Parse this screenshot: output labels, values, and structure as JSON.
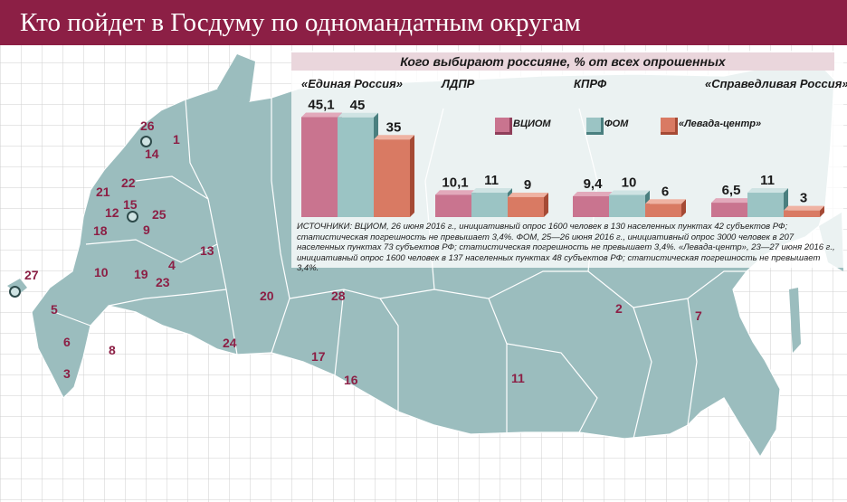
{
  "title": "Кто пойдет в Госдуму по одномандатным округам",
  "chart_data": {
    "type": "bar",
    "title": "Кого выбирают россияне, % от всех опрошенных",
    "categories": [
      "«Единая Россия»",
      "ЛДПР",
      "КПРФ",
      "«Справедливая Россия»"
    ],
    "series": [
      {
        "name": "ВЦИОМ",
        "values": [
          45.1,
          10.1,
          9.4,
          6.5
        ],
        "labels": [
          "45,1",
          "10,1",
          "9,4",
          "6,5"
        ]
      },
      {
        "name": "ФОМ",
        "values": [
          45,
          11,
          10,
          11
        ],
        "labels": [
          "45",
          "11",
          "10",
          "11"
        ]
      },
      {
        "name": "«Левада-центр»",
        "values": [
          35,
          9,
          6,
          3
        ],
        "labels": [
          "35",
          "9",
          "6",
          "3"
        ]
      }
    ],
    "colors": [
      "#c9748f",
      "#9bc4c4",
      "#d97a63"
    ],
    "legend": "top-right"
  },
  "sources": "ИСТОЧНИКИ: ВЦИОМ, 26 июня 2016 г., инициативный опрос 1600 человек в 130 населенных пунктах 42 субъектов РФ; статистическая погрешность не превышает 3,4%. ФОМ, 25—26 июня 2016 г., инициативный опрос 3000 человек в 207 населенных пунктах 73 субъектов РФ; статистическая погрешность не превышает 3,4%. «Левада-центр», 23—27 июня 2016 г., инициативный опрос 1600 человек в 137 населенных пунктах 48 субъектов РФ; статистическая погрешность не превышает 3,4%.",
  "map_regions": [
    "1",
    "2",
    "3",
    "4",
    "5",
    "6",
    "7",
    "8",
    "9",
    "10",
    "11",
    "12",
    "13",
    "14",
    "15",
    "16",
    "17",
    "18",
    "19",
    "20",
    "21",
    "22",
    "23",
    "24",
    "25",
    "26",
    "27",
    "28"
  ],
  "colors": {
    "banner": "#8c1f45",
    "map": "#9bbdbe",
    "region_label": "#8c1f45"
  }
}
